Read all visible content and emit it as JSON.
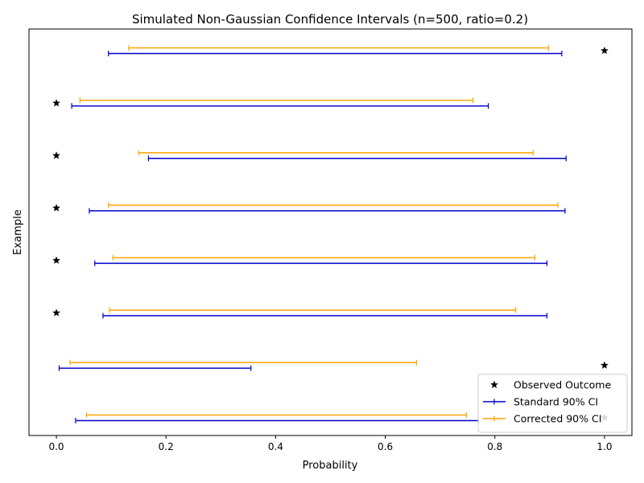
{
  "chart_data": {
    "type": "errorbar",
    "title": "Simulated Non-Gaussian Confidence Intervals (n=500, ratio=0.2)",
    "xlabel": "Probability",
    "ylabel": "Example",
    "xlim": [
      -0.05,
      1.05
    ],
    "xticks": [
      0.0,
      0.2,
      0.4,
      0.6,
      0.8,
      1.0
    ],
    "xtick_labels": [
      "0.0",
      "0.2",
      "0.4",
      "0.6",
      "0.8",
      "1.0"
    ],
    "yticks_shown": false,
    "grid": false,
    "legend_position": "lower-right",
    "examples": 8,
    "series": [
      {
        "name": "Observed Outcome",
        "kind": "marker",
        "color": "#000000",
        "values": [
          1,
          1,
          0,
          0,
          0,
          0,
          0,
          1
        ]
      },
      {
        "name": "Standard 90% CI",
        "kind": "interval",
        "color": "#0000cc",
        "lower": [
          0.035,
          0.005,
          0.085,
          0.07,
          0.06,
          0.168,
          0.028,
          0.095
        ],
        "upper": [
          0.77,
          0.355,
          0.895,
          0.895,
          0.928,
          0.93,
          0.788,
          0.922
        ]
      },
      {
        "name": "Corrected 90% CI",
        "kind": "interval",
        "color": "#ffa500",
        "lower": [
          0.055,
          0.025,
          0.097,
          0.103,
          0.095,
          0.15,
          0.043,
          0.132
        ],
        "upper": [
          0.748,
          0.657,
          0.838,
          0.873,
          0.915,
          0.87,
          0.76,
          0.898
        ]
      }
    ]
  }
}
